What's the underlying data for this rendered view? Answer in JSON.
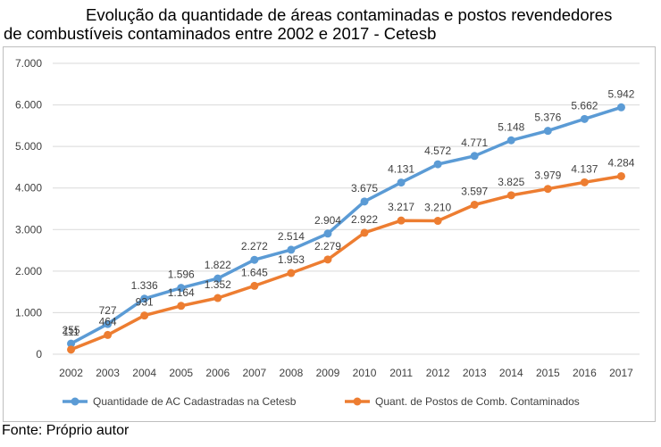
{
  "title": {
    "line1": "Evolução da quantidade de áreas contaminadas e postos revendedores",
    "line2": "de combustíveis contaminados entre 2002 e 2017 - Cetesb"
  },
  "source": "Fonte:  Próprio autor",
  "colors": {
    "series1": "#5b9bd5",
    "series2": "#ed7d31",
    "grid": "#d9d9d9",
    "text": "#404040"
  },
  "chart_data": {
    "type": "line",
    "title": "Evolução da quantidade de áreas contaminadas e postos revendedores de combustíveis contaminados entre 2002 e 2017 - Cetesb",
    "x": [
      "2002",
      "2003",
      "2004",
      "2005",
      "2006",
      "2007",
      "2008",
      "2009",
      "2010",
      "2011",
      "2012",
      "2013",
      "2014",
      "2015",
      "2016",
      "2017"
    ],
    "ylim": [
      0,
      7000
    ],
    "yticks": [
      0,
      1000,
      2000,
      3000,
      4000,
      5000,
      6000,
      7000
    ],
    "ytick_labels": [
      "0",
      "1.000",
      "2.000",
      "3.000",
      "4.000",
      "5.000",
      "6.000",
      "7.000"
    ],
    "grid": true,
    "legend_position": "bottom",
    "series": [
      {
        "name": "Quantidade de AC Cadastradas na Cetesb",
        "values": [
          255,
          727,
          1336,
          1596,
          1822,
          2272,
          2514,
          2904,
          3675,
          4131,
          4572,
          4771,
          5148,
          5376,
          5662,
          5942
        ],
        "labels": [
          "255",
          "727",
          "1.336",
          "1.596",
          "1.822",
          "2.272",
          "2.514",
          "2.904",
          "3.675",
          "4.131",
          "4.572",
          "4.771",
          "5.148",
          "5.376",
          "5.662",
          "5.942"
        ]
      },
      {
        "name": "Quant. de Postos de Comb. Contaminados",
        "values": [
          111,
          464,
          931,
          1164,
          1352,
          1645,
          1953,
          2279,
          2922,
          3217,
          3210,
          3597,
          3825,
          3979,
          4137,
          4284
        ],
        "labels": [
          "111",
          "464",
          "931",
          "1.164",
          "1.352",
          "1.645",
          "1.953",
          "2.279",
          "2.922",
          "3.217",
          "3.210",
          "3.597",
          "3.825",
          "3.979",
          "4.137",
          "4.284"
        ]
      }
    ]
  }
}
